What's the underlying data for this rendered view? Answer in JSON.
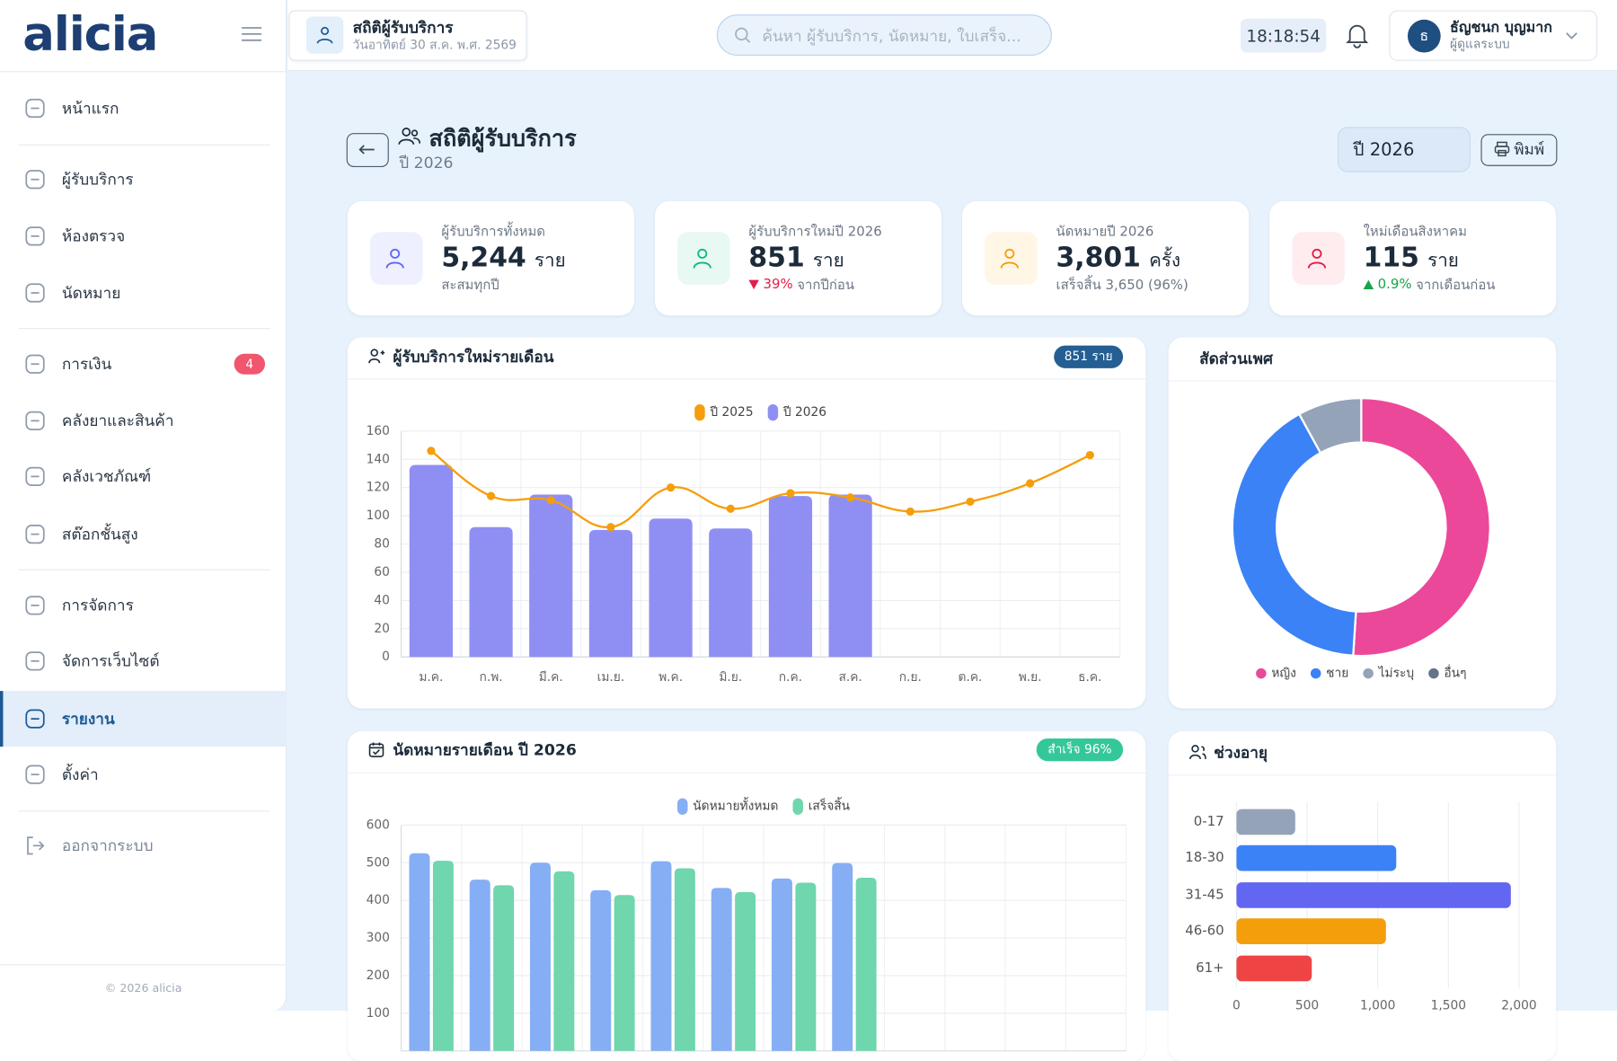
{
  "sidebar": {
    "logo": "alicia",
    "menu": [
      {
        "label": "หน้าแรก"
      },
      {
        "label": "ผู้รับบริการ"
      },
      {
        "label": "ห้องตรวจ"
      },
      {
        "label": "นัดหมาย"
      },
      {
        "label": "การเงิน",
        "badge": 4
      },
      {
        "label": "คลังยาและสินค้า"
      },
      {
        "label": "คลังเวชภัณฑ์"
      },
      {
        "label": "สต๊อกชั้นสูง"
      },
      {
        "label": "การจัดการ"
      },
      {
        "label": "จัดการเว็บไซต์"
      },
      {
        "label": "รายงาน",
        "active": true
      },
      {
        "label": "ตั้งค่า"
      }
    ],
    "logout": "ออกจากระบบ",
    "footer": "© 2026 alicia"
  },
  "topbar": {
    "tab_title": "สถิติผู้รับบริการ",
    "tab_subtitle": "วันอาทิตย์ 30 ส.ค. พ.ศ. 2569",
    "search_placeholder": "ค้นหา ผู้รับบริการ, นัดหมาย, ใบเสร็จ...",
    "clock": "18:18:54",
    "user_initial": "ธ",
    "user_name": "ธัญชนก บุญมาก",
    "user_role": "ผู้ดูแลระบบ"
  },
  "page": {
    "title": "สถิติผู้รับบริการ",
    "subtitle": "ปี 2026",
    "year_select": "ปี 2026",
    "print": "พิมพ์"
  },
  "stats": [
    {
      "label": "ผู้รับบริการทั้งหมด",
      "value": "5,244",
      "unit": "ราย",
      "note": "สะสมทุกปี"
    },
    {
      "label": "ผู้รับบริการใหม่ปี 2026",
      "value": "851",
      "unit": "ราย",
      "change": "39%",
      "direction": "down",
      "note": "จากปีก่อน"
    },
    {
      "label": "นัดหมายปี 2026",
      "value": "3,801",
      "unit": "ครั้ง",
      "note": "เสร็จสิ้น 3,650 (96%)"
    },
    {
      "label": "ใหม่เดือนสิงหาคม",
      "value": "115",
      "unit": "ราย",
      "change": "0.9%",
      "direction": "up",
      "note": "จากเดือนก่อน"
    }
  ],
  "charts": [
    {
      "type": "bar_line",
      "title": "ผู้รับบริการใหม่รายเดือน",
      "badge": "851 ราย",
      "categories": [
        "ม.ค.",
        "ก.พ.",
        "มี.ค.",
        "เม.ย.",
        "พ.ค.",
        "มิ.ย.",
        "ก.ค.",
        "ส.ค.",
        "ก.ย.",
        "ต.ค.",
        "พ.ย.",
        "ธ.ค."
      ],
      "series": [
        {
          "name": "ปี 2025",
          "type": "line",
          "color": "#f59e0b",
          "values": [
            146,
            114,
            111,
            92,
            120,
            105,
            116,
            113,
            103,
            110,
            123,
            143
          ]
        },
        {
          "name": "ปี 2026",
          "type": "bar",
          "color": "#8f8ff3",
          "values": [
            136,
            92,
            115,
            90,
            98,
            91,
            114,
            115,
            null,
            null,
            null,
            null
          ]
        }
      ],
      "ylim": [
        0,
        160
      ],
      "yticks": [
        0,
        20,
        40,
        60,
        80,
        100,
        120,
        140,
        160
      ],
      "grid": true
    },
    {
      "type": "doughnut",
      "title": "สัดส่วนเพศ",
      "categories": [
        "หญิง",
        "ชาย",
        "ไม่ระบุ",
        "อื่นๆ"
      ],
      "values": [
        51,
        41,
        8,
        0
      ],
      "colors": [
        "#ec4899",
        "#3b82f6",
        "#94a3b8",
        "#64748b"
      ]
    },
    {
      "type": "bar",
      "title": "นัดหมายรายเดือน ปี 2026",
      "badge": "สำเร็จ 96%",
      "categories": [
        null,
        null,
        null,
        null,
        null,
        null,
        null,
        null,
        null,
        null,
        null,
        null
      ],
      "series": [
        {
          "name": "นัดหมายทั้งหมด",
          "color": "#86aef5",
          "values": [
            525,
            455,
            500,
            427,
            504,
            433,
            458,
            499,
            null,
            null,
            null,
            null
          ]
        },
        {
          "name": "เสร็จสิ้น",
          "color": "#6fd6ad",
          "values": [
            505,
            440,
            477,
            414,
            485,
            422,
            447,
            460,
            null,
            null,
            null,
            null
          ]
        }
      ],
      "ylim": [
        0,
        600
      ],
      "yticks": [
        100,
        200,
        300,
        400,
        500,
        600
      ],
      "grid": true
    },
    {
      "type": "hbar",
      "title": "ช่วงอายุ",
      "categories": [
        "0-17",
        "18-30",
        "31-45",
        "46-60",
        "61+"
      ],
      "values": [
        416,
        1131,
        1942,
        1058,
        533
      ],
      "colors": [
        "#94a3b8",
        "#3b82f6",
        "#6366f1",
        "#f59e0b",
        "#ef4444"
      ],
      "xlim": [
        0,
        2000
      ],
      "xticks": [
        0,
        500,
        {
          "value": 1000,
          "label": "1,000"
        },
        {
          "value": 1500,
          "label": "1,500"
        },
        {
          "value": 2000,
          "label": "2,000"
        }
      ],
      "grid": true
    }
  ]
}
